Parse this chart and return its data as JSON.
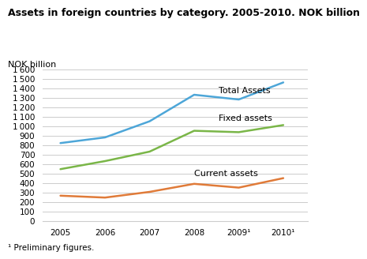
{
  "title": "Assets in foreign countries by category. 2005-2010. NOK billion",
  "ylabel": "NOK billion",
  "footnote": "¹ Preliminary figures.",
  "years": [
    2005,
    2006,
    2007,
    2008,
    2009,
    2010
  ],
  "xtick_labels": [
    "2005",
    "2006",
    "2007",
    "2008",
    "2009¹",
    "2010¹"
  ],
  "total_assets": [
    820,
    880,
    1050,
    1330,
    1280,
    1460
  ],
  "fixed_assets": [
    545,
    630,
    730,
    950,
    935,
    1010
  ],
  "current_assets": [
    265,
    245,
    305,
    390,
    350,
    450
  ],
  "color_total": "#4da6d8",
  "color_fixed": "#7ab648",
  "color_current": "#e07b39",
  "ylim_min": 0,
  "ylim_max": 1600,
  "ytick_step": 100,
  "label_total": "Total Assets",
  "label_fixed": "Fixed assets",
  "label_current": "Current assets",
  "bg_color": "#ffffff",
  "grid_color": "#cccccc",
  "line_width": 1.8,
  "title_fontsize": 9.0,
  "tick_fontsize": 7.5,
  "label_fontsize": 8.0,
  "annot_fontsize": 8.0
}
